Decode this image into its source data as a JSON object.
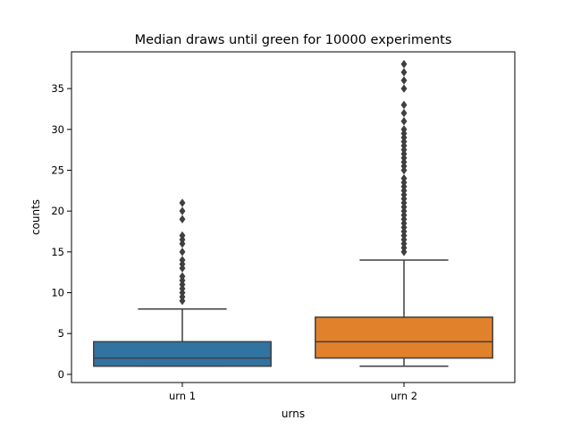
{
  "chart_data": {
    "type": "box",
    "title": "Median draws until green for 10000 experiments",
    "xlabel": "urns",
    "ylabel": "counts",
    "categories": [
      "urn 1",
      "urn 2"
    ],
    "ylim": [
      -1,
      39.5
    ],
    "yticks": [
      0,
      5,
      10,
      15,
      20,
      25,
      30,
      35
    ],
    "grid": false,
    "boxes": [
      {
        "category": "urn 1",
        "color": "#3274a1",
        "whisker_low": 1,
        "q1": 1,
        "median": 2,
        "q3": 4,
        "whisker_high": 8,
        "outliers": [
          9,
          9.5,
          10,
          10.5,
          11,
          11.5,
          12,
          13,
          13.5,
          14,
          15,
          16,
          16.5,
          17,
          19,
          20,
          21
        ]
      },
      {
        "category": "urn 2",
        "color": "#e1812c",
        "whisker_low": 1,
        "q1": 2,
        "median": 4,
        "q3": 7,
        "whisker_high": 14,
        "outliers": [
          15,
          15.5,
          16,
          16.5,
          17,
          17.5,
          18,
          18.5,
          19,
          19.5,
          20,
          20.5,
          21,
          21.5,
          22,
          22.5,
          23,
          23.5,
          24,
          25,
          25.5,
          26,
          26.5,
          27,
          27.5,
          28,
          28.5,
          29,
          29.5,
          30,
          31,
          32,
          33,
          35,
          36,
          37,
          38
        ]
      }
    ]
  }
}
